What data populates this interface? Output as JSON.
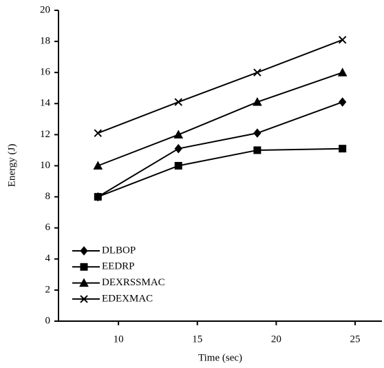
{
  "chart_data": {
    "type": "line",
    "x_label": "Time (sec)",
    "y_label": "Energy (J)",
    "xlim": [
      6.2,
      26.7
    ],
    "xticks": [
      10,
      15,
      20,
      25
    ],
    "ylim": [
      0,
      20
    ],
    "yticks": [
      0,
      2,
      4,
      6,
      8,
      10,
      12,
      14,
      16,
      18,
      20
    ],
    "legend": "lower left",
    "series": [
      {
        "name": "DLBOP",
        "color": "#000000",
        "marker": "diamond",
        "x": [
          8.7,
          13.8,
          18.8,
          24.2
        ],
        "values": [
          8,
          11.1,
          12.1,
          14.1
        ]
      },
      {
        "name": "EEDRP",
        "color": "#000000",
        "marker": "square",
        "x": [
          8.7,
          13.8,
          18.8,
          24.2
        ],
        "values": [
          8,
          10,
          11,
          11.1
        ]
      },
      {
        "name": "DEXRSSMAC",
        "color": "#000000",
        "marker": "triangle",
        "x": [
          8.7,
          13.8,
          18.8,
          24.2
        ],
        "values": [
          10,
          12,
          14.1,
          16
        ]
      },
      {
        "name": "EDEXMAC",
        "color": "#000000",
        "marker": "cross",
        "x": [
          8.7,
          13.8,
          18.8,
          24.2
        ],
        "values": [
          12.1,
          14.1,
          16,
          18.1
        ]
      }
    ]
  }
}
